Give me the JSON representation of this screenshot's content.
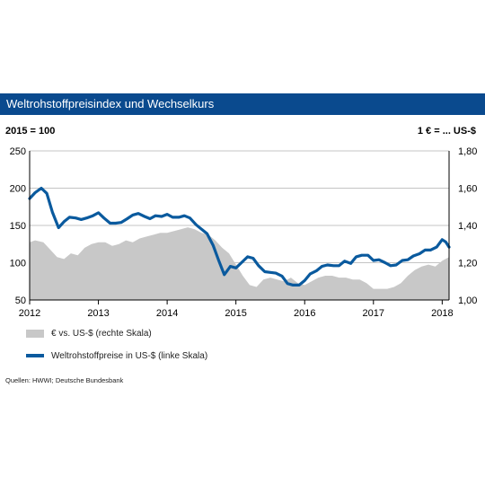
{
  "header": {
    "title": "Weltrohstoffpreisindex  und Wechselkurs",
    "left_unit": "2015 = 100",
    "right_unit": "1 € = ... US-$"
  },
  "legend": {
    "area_label": "€ vs. US-$ (rechte Skala)",
    "line_label": "Weltrohstoffpreise in US-$ (linke Skala)"
  },
  "source": "Quellen: HWWI; Deutsche Bundesbank",
  "colors": {
    "area": "#c8c8c8",
    "line": "#0a5a9e",
    "title_bg": "#0a4a8e"
  },
  "chart_data": {
    "type": "line",
    "x_ticks": [
      "2012",
      "2013",
      "2014",
      "2015",
      "2016",
      "2017",
      "2018"
    ],
    "xlim": [
      2012.0,
      2018.1
    ],
    "y_left": {
      "ticks": [
        "250",
        "200",
        "150",
        "100",
        "50"
      ],
      "lim": [
        50,
        250
      ]
    },
    "y_right": {
      "ticks": [
        "1,80",
        "1,60",
        "1,40",
        "1,20",
        "1,00"
      ],
      "lim": [
        1.0,
        1.8
      ]
    },
    "grid": true,
    "series": [
      {
        "name": "€ vs. US-$ (rechte Skala)",
        "axis": "right",
        "style": "area",
        "x": [
          2012.0,
          2012.08,
          2012.2,
          2012.3,
          2012.4,
          2012.5,
          2012.6,
          2012.7,
          2012.8,
          2012.9,
          2013.0,
          2013.1,
          2013.2,
          2013.3,
          2013.4,
          2013.5,
          2013.6,
          2013.7,
          2013.8,
          2013.9,
          2014.0,
          2014.1,
          2014.2,
          2014.3,
          2014.4,
          2014.5,
          2014.6,
          2014.7,
          2014.8,
          2014.9,
          2015.0,
          2015.1,
          2015.2,
          2015.3,
          2015.4,
          2015.5,
          2015.6,
          2015.7,
          2015.8,
          2015.9,
          2016.0,
          2016.1,
          2016.2,
          2016.3,
          2016.4,
          2016.5,
          2016.6,
          2016.7,
          2016.8,
          2016.9,
          2017.0,
          2017.1,
          2017.2,
          2017.3,
          2017.4,
          2017.5,
          2017.6,
          2017.7,
          2017.8,
          2017.9,
          2018.0,
          2018.1
        ],
        "values": [
          1.31,
          1.32,
          1.31,
          1.27,
          1.23,
          1.22,
          1.25,
          1.24,
          1.28,
          1.3,
          1.31,
          1.31,
          1.29,
          1.3,
          1.32,
          1.31,
          1.33,
          1.34,
          1.35,
          1.36,
          1.36,
          1.37,
          1.38,
          1.39,
          1.38,
          1.36,
          1.35,
          1.32,
          1.28,
          1.25,
          1.19,
          1.13,
          1.08,
          1.07,
          1.11,
          1.12,
          1.11,
          1.1,
          1.12,
          1.09,
          1.08,
          1.1,
          1.12,
          1.13,
          1.13,
          1.12,
          1.12,
          1.11,
          1.11,
          1.09,
          1.06,
          1.06,
          1.06,
          1.07,
          1.09,
          1.13,
          1.16,
          1.18,
          1.19,
          1.18,
          1.21,
          1.23
        ]
      },
      {
        "name": "Weltrohstoffpreise in US-$ (linke Skala)",
        "axis": "left",
        "style": "line",
        "x": [
          2012.0,
          2012.08,
          2012.17,
          2012.25,
          2012.33,
          2012.42,
          2012.5,
          2012.58,
          2012.67,
          2012.75,
          2012.83,
          2012.92,
          2013.0,
          2013.08,
          2013.17,
          2013.25,
          2013.33,
          2013.42,
          2013.5,
          2013.58,
          2013.67,
          2013.75,
          2013.83,
          2013.92,
          2014.0,
          2014.08,
          2014.17,
          2014.25,
          2014.33,
          2014.42,
          2014.5,
          2014.58,
          2014.67,
          2014.75,
          2014.83,
          2014.92,
          2015.0,
          2015.08,
          2015.17,
          2015.25,
          2015.33,
          2015.42,
          2015.5,
          2015.58,
          2015.67,
          2015.75,
          2015.83,
          2015.92,
          2016.0,
          2016.08,
          2016.17,
          2016.25,
          2016.33,
          2016.42,
          2016.5,
          2016.58,
          2016.67,
          2016.75,
          2016.83,
          2016.92,
          2017.0,
          2017.08,
          2017.17,
          2017.25,
          2017.33,
          2017.42,
          2017.5,
          2017.58,
          2017.67,
          2017.75,
          2017.83,
          2017.92,
          2018.0,
          2018.05,
          2018.1
        ],
        "values": [
          186,
          194,
          200,
          193,
          168,
          147,
          155,
          161,
          160,
          158,
          160,
          163,
          167,
          160,
          153,
          153,
          154,
          159,
          164,
          166,
          162,
          159,
          163,
          162,
          165,
          161,
          161,
          163,
          160,
          151,
          145,
          139,
          123,
          103,
          84,
          95,
          93,
          100,
          108,
          106,
          96,
          88,
          87,
          86,
          82,
          72,
          70,
          70,
          76,
          85,
          89,
          95,
          97,
          96,
          96,
          102,
          99,
          108,
          110,
          110,
          103,
          104,
          100,
          96,
          97,
          103,
          104,
          109,
          112,
          117,
          117,
          121,
          131,
          128,
          121
        ]
      }
    ]
  }
}
